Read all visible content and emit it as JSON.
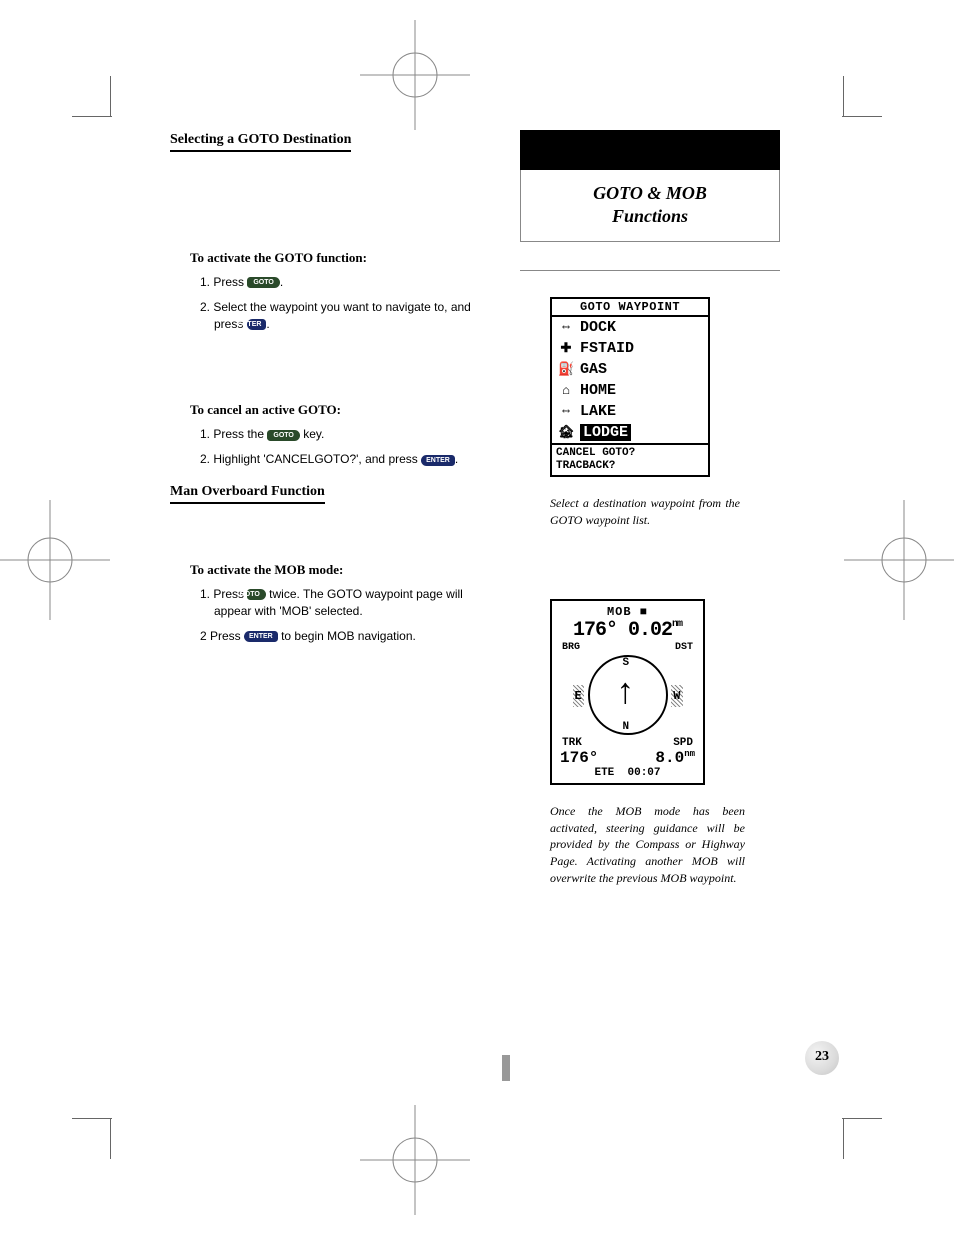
{
  "page_number": "23",
  "sidebar": {
    "title_line1": "GOTO & MOB",
    "title_line2": "Functions"
  },
  "section1": {
    "title": "Selecting a GOTO Destination",
    "heading1": "To activate the GOTO function:",
    "step1a": "1. Press ",
    "step1b": ".",
    "step2a": "2. Select the waypoint you want to navigate to, and press ",
    "step2b": ".",
    "heading2": "To cancel an active GOTO:",
    "step3a": "1. Press the ",
    "step3b": " key.",
    "step4a": "2. Highlight 'CANCELGOTO?', and press ",
    "step4b": "."
  },
  "section2": {
    "title": "Man Overboard Function",
    "heading1": "To activate the MOB mode:",
    "step1a": "1. Press ",
    "step1b": " twice. The GOTO waypoint page will appear with 'MOB' selected.",
    "step2a": "2 Press ",
    "step2b": " to begin MOB navigation."
  },
  "keys": {
    "goto": "GOTO",
    "enter": "ENTER"
  },
  "goto_screen": {
    "header": "GOTO WAYPOINT",
    "rows": [
      {
        "icon": "⇔",
        "label": "DOCK",
        "selected": false
      },
      {
        "icon": "✚",
        "label": "FSTAID",
        "selected": false
      },
      {
        "icon": "⛽",
        "label": "GAS",
        "selected": false
      },
      {
        "icon": "⌂",
        "label": "HOME",
        "selected": false
      },
      {
        "icon": "⇔",
        "label": "LAKE",
        "selected": false
      },
      {
        "icon": "🏚",
        "label": "LODGE",
        "selected": true
      }
    ],
    "footer1": "CANCEL GOTO?",
    "footer2": "TRACBACK?"
  },
  "caption1": "Select a destination waypoint from the GOTO waypoint list.",
  "mob_screen": {
    "title": "MOB  ■",
    "brg_val": "176°",
    "dst_val": "0.02",
    "dst_unit": "nm",
    "brg_lbl": "BRG",
    "dst_lbl": "DST",
    "n": "N",
    "s": "S",
    "e": "E",
    "w": "W",
    "trk_lbl": "TRK",
    "spd_lbl": "SPD",
    "trk_val": "176°",
    "spd_val": "8.0",
    "spd_unit": "nm",
    "ete_lbl": "ETE",
    "ete_val": "00:07"
  },
  "caption2": "Once the MOB mode has been activated, steering guidance will be provided by the Compass or Highway Page. Activating another MOB will overwrite the previous MOB waypoint."
}
